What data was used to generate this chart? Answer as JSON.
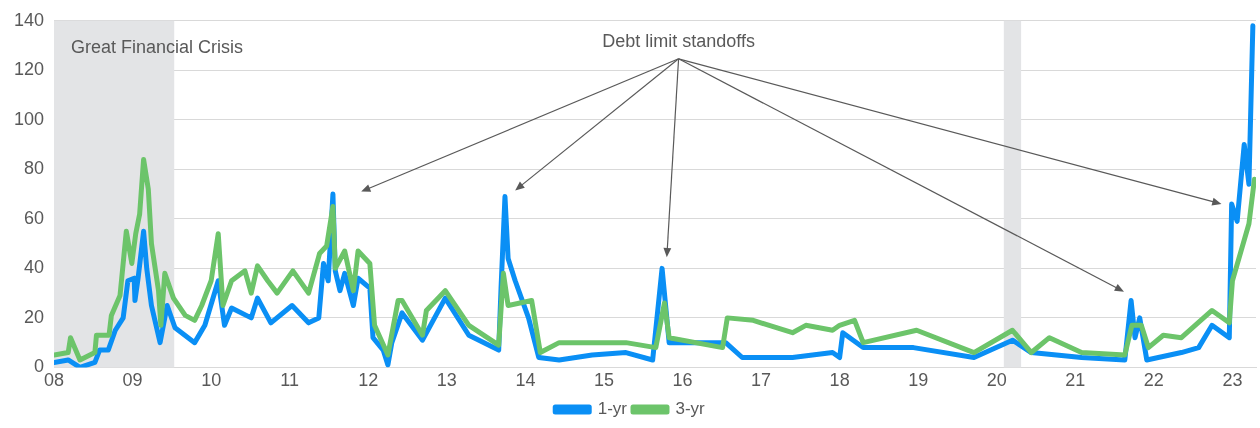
{
  "chart_data": {
    "type": "line",
    "annotations": [
      "Debt limit standoffs"
    ],
    "bands": [
      {
        "axis": "x",
        "from": 2008,
        "to": 2009.53,
        "label": "Great Financial Crisis",
        "color": "#e3e4e6"
      },
      {
        "axis": "x",
        "from": 2020.09,
        "to": 2020.31,
        "color": "#e3e4e6"
      }
    ],
    "series": [
      {
        "name": "1-yr",
        "color": "#0a8ff5",
        "x": [
          2008.0,
          2008.18,
          2008.33,
          2008.52,
          2008.58,
          2008.69,
          2008.78,
          2008.88,
          2008.94,
          2009.02,
          2009.03,
          2009.07,
          2009.14,
          2009.18,
          2009.24,
          2009.35,
          2009.44,
          2009.54,
          2009.79,
          2009.92,
          2010.09,
          2010.17,
          2010.26,
          2010.51,
          2010.59,
          2010.76,
          2011.03,
          2011.24,
          2011.37,
          2011.43,
          2011.49,
          2011.55,
          2011.58,
          2011.64,
          2011.7,
          2011.81,
          2011.87,
          2012.02,
          2012.06,
          2012.19,
          2012.25,
          2012.3,
          2012.43,
          2012.69,
          2012.98,
          2013.28,
          2013.66,
          2013.69,
          2013.74,
          2013.78,
          2013.87,
          2014.04,
          2014.17,
          2014.43,
          2014.85,
          2015.28,
          2015.62,
          2015.74,
          2015.83,
          2016.55,
          2016.76,
          2017.4,
          2017.91,
          2018.0,
          2018.04,
          2018.3,
          2018.94,
          2019.71,
          2020.2,
          2020.44,
          2021.08,
          2021.63,
          2021.71,
          2021.76,
          2021.82,
          2021.91,
          2022.35,
          2022.57,
          2022.74,
          2022.96,
          2022.99,
          2023.06,
          2023.15,
          2023.21,
          2023.26
        ],
        "values": [
          2,
          3,
          0,
          2,
          7,
          7,
          15,
          20,
          35,
          36,
          27,
          36,
          55,
          40,
          25,
          10,
          25,
          16,
          10,
          17,
          35,
          17,
          24,
          20,
          28,
          18,
          25,
          18,
          20,
          42,
          35,
          70,
          39,
          31,
          38,
          25,
          36,
          32,
          12,
          7,
          1,
          10,
          22,
          11,
          28,
          13,
          7,
          32,
          69,
          44,
          35,
          20,
          4,
          3,
          5,
          6,
          3,
          40,
          10,
          10,
          4,
          4,
          6,
          4,
          14,
          8,
          8,
          4,
          11,
          6,
          4,
          3,
          27,
          12,
          20,
          3,
          6,
          8,
          17,
          12,
          66,
          59,
          90,
          74,
          138
        ]
      },
      {
        "name": "3-yr",
        "color": "#6cc46a",
        "x": [
          2008.0,
          2008.18,
          2008.21,
          2008.33,
          2008.52,
          2008.54,
          2008.7,
          2008.73,
          2008.84,
          2008.92,
          2008.99,
          2009.04,
          2009.09,
          2009.14,
          2009.2,
          2009.24,
          2009.33,
          2009.36,
          2009.41,
          2009.52,
          2009.67,
          2009.79,
          2009.88,
          2010.0,
          2010.09,
          2010.15,
          2010.26,
          2010.43,
          2010.51,
          2010.59,
          2010.72,
          2010.84,
          2011.04,
          2011.24,
          2011.38,
          2011.47,
          2011.55,
          2011.58,
          2011.7,
          2011.81,
          2011.87,
          2012.02,
          2012.08,
          2012.25,
          2012.38,
          2012.43,
          2012.69,
          2012.74,
          2012.98,
          2013.28,
          2013.66,
          2013.72,
          2013.78,
          2014.08,
          2014.19,
          2014.43,
          2015.28,
          2015.66,
          2015.77,
          2015.83,
          2016.51,
          2016.57,
          2016.9,
          2017.4,
          2017.57,
          2017.91,
          2018.0,
          2018.19,
          2018.3,
          2018.98,
          2019.71,
          2020.2,
          2020.44,
          2020.67,
          2021.08,
          2021.63,
          2021.72,
          2021.84,
          2021.93,
          2022.12,
          2022.35,
          2022.74,
          2022.96,
          2023.0,
          2023.21,
          2023.28
        ],
        "values": [
          5,
          6,
          12,
          3,
          6,
          13,
          13,
          21,
          29,
          55,
          42,
          54,
          62,
          84,
          72,
          50,
          31,
          17,
          38,
          28,
          21,
          19,
          25,
          35,
          54,
          25,
          35,
          39,
          30,
          41,
          35,
          30,
          39,
          30,
          46,
          49,
          65,
          40,
          47,
          31,
          47,
          42,
          17,
          5,
          27,
          27,
          13,
          23,
          31,
          17,
          9,
          38,
          25,
          27,
          6,
          10,
          10,
          8,
          26,
          12,
          8,
          20,
          19,
          14,
          17,
          15,
          17,
          19,
          10,
          15,
          6,
          15,
          6,
          12,
          6,
          5,
          17,
          17,
          8,
          13,
          12,
          23,
          18,
          35,
          58,
          76
        ]
      }
    ],
    "xlim": [
      2008,
      2023.3
    ],
    "xticks": [
      {
        "value": 2008,
        "label": "08"
      },
      {
        "value": 2009,
        "label": "09"
      },
      {
        "value": 2010,
        "label": "10"
      },
      {
        "value": 2011,
        "label": "11"
      },
      {
        "value": 2012,
        "label": "12"
      },
      {
        "value": 2013,
        "label": "13"
      },
      {
        "value": 2014,
        "label": "14"
      },
      {
        "value": 2015,
        "label": "15"
      },
      {
        "value": 2016,
        "label": "16"
      },
      {
        "value": 2017,
        "label": "17"
      },
      {
        "value": 2018,
        "label": "18"
      },
      {
        "value": 2019,
        "label": "19"
      },
      {
        "value": 2020,
        "label": "20"
      },
      {
        "value": 2021,
        "label": "21"
      },
      {
        "value": 2022,
        "label": "22"
      },
      {
        "value": 2023,
        "label": "23"
      }
    ],
    "ylim": [
      0,
      140
    ],
    "yticks": [
      0,
      20,
      40,
      60,
      80,
      100,
      120,
      140
    ],
    "grid": "y",
    "legend": "bottom",
    "marker": "none",
    "line_style": "solid"
  }
}
